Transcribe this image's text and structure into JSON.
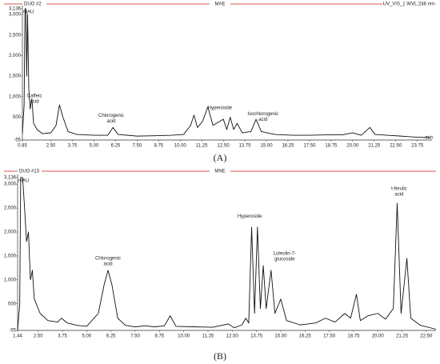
{
  "chart_data": [
    {
      "type": "line",
      "title": "MAE",
      "run": "DUO #2",
      "detector": "UV_VIS_1 WVL:246 nm",
      "label": "(A)",
      "y_unit": "mAU",
      "x_unit": "min",
      "xlim": [
        0.85,
        24.6
      ],
      "ylim": [
        -55,
        3136
      ],
      "xticks": [
        0.85,
        {
          "value": 2.5,
          "label": "2.50"
        },
        3.75,
        {
          "value": 5.0,
          "label": "5.00"
        },
        6.25,
        {
          "value": 7.5,
          "label": "7.50"
        },
        8.75,
        {
          "value": 10.0,
          "label": "10.00"
        },
        11.25,
        {
          "value": 12.5,
          "label": "12.50"
        },
        13.75,
        {
          "value": 15.0,
          "label": "15.00"
        },
        16.25,
        {
          "value": 17.5,
          "label": "17.50"
        },
        18.75,
        {
          "value": 20.0,
          "label": "20.00"
        },
        21.25,
        {
          "value": 22.5,
          "label": "22.50"
        },
        23.75
      ],
      "yticks": [
        {
          "value": 3136,
          "label": "3,136"
        },
        {
          "value": 3000,
          "label": "3,000"
        },
        {
          "value": 2500,
          "label": "2,500"
        },
        {
          "value": 2000,
          "label": "2,000"
        },
        {
          "value": 1500,
          "label": "1,500"
        },
        {
          "value": 1000,
          "label": "1,000"
        },
        500,
        -55
      ],
      "color": "#111111",
      "x": [
        0.85,
        0.95,
        1.0,
        1.05,
        1.1,
        1.15,
        1.22,
        1.3,
        1.4,
        1.5,
        1.7,
        2.0,
        2.5,
        2.8,
        3.0,
        3.2,
        3.5,
        4.0,
        5.0,
        5.8,
        6.1,
        6.4,
        7.5,
        8.75,
        9.5,
        10.2,
        10.6,
        10.8,
        11.0,
        11.3,
        11.6,
        11.9,
        12.3,
        12.5,
        12.7,
        12.9,
        13.1,
        13.3,
        13.6,
        14.1,
        14.4,
        14.7,
        15.5,
        16.5,
        17.5,
        18.5,
        19.4,
        20.0,
        20.5,
        21.0,
        21.3,
        22.0,
        22.8,
        23.5,
        24.5
      ],
      "values": [
        100,
        800,
        3136,
        3136,
        1500,
        3000,
        1200,
        700,
        950,
        350,
        200,
        100,
        120,
        300,
        800,
        500,
        150,
        80,
        60,
        60,
        250,
        80,
        40,
        50,
        60,
        80,
        300,
        550,
        250,
        400,
        750,
        300,
        400,
        450,
        200,
        500,
        200,
        350,
        120,
        150,
        450,
        150,
        80,
        60,
        60,
        70,
        70,
        120,
        60,
        250,
        80,
        60,
        40,
        20,
        0
      ],
      "annotations": [
        {
          "lines": [
            "Caffeic",
            "acid"
          ],
          "x": 1.55,
          "y": 1020
        },
        {
          "lines": [
            "Chlorogenic",
            "acid"
          ],
          "x": 6.0,
          "y": 540
        },
        {
          "lines": [
            "Hyperoside"
          ],
          "x": 12.3,
          "y": 720
        },
        {
          "lines": [
            "Isochlorogenic",
            "acid"
          ],
          "x": 14.8,
          "y": 580
        }
      ]
    },
    {
      "type": "line",
      "title": "MNE",
      "run": "DUO #13",
      "label": "(B)",
      "y_unit": "mAU",
      "xlim": [
        1.44,
        23.0
      ],
      "ylim": [
        -55,
        3136
      ],
      "xticks": [
        1.44,
        {
          "value": 2.5,
          "label": "2.50"
        },
        3.75,
        {
          "value": 5.0,
          "label": "5.00"
        },
        6.25,
        {
          "value": 7.5,
          "label": "7.50"
        },
        8.75,
        {
          "value": 10.0,
          "label": "10.00"
        },
        11.25,
        {
          "value": 12.5,
          "label": "12.50"
        },
        13.75,
        {
          "value": 15.0,
          "label": "15.00"
        },
        16.25,
        {
          "value": 17.5,
          "label": "17.50"
        },
        18.75,
        {
          "value": 20.0,
          "label": "20.00"
        },
        21.25,
        {
          "value": 22.5,
          "label": "22.50"
        }
      ],
      "yticks": [
        {
          "value": 3136,
          "label": "3,136"
        },
        {
          "value": 3000,
          "label": "3,000"
        },
        {
          "value": 2500,
          "label": "2,500"
        },
        {
          "value": 2000,
          "label": "2,000"
        },
        {
          "value": 1500,
          "label": "1,500"
        },
        {
          "value": 1000,
          "label": "1,000"
        },
        500,
        -55
      ],
      "color": "#111111",
      "x": [
        1.44,
        1.55,
        1.6,
        1.7,
        1.8,
        1.9,
        2.0,
        2.1,
        2.2,
        2.3,
        2.6,
        3.0,
        3.5,
        3.7,
        4.0,
        4.5,
        5.0,
        5.6,
        5.9,
        6.1,
        6.3,
        6.6,
        7.0,
        7.5,
        8.0,
        8.5,
        9.0,
        9.3,
        9.6,
        10.5,
        11.5,
        12.3,
        12.6,
        13.0,
        13.2,
        13.35,
        13.5,
        13.65,
        13.8,
        13.95,
        14.1,
        14.25,
        14.5,
        14.7,
        15.0,
        15.3,
        16.0,
        16.8,
        17.3,
        17.8,
        18.3,
        18.6,
        18.9,
        19.1,
        19.5,
        20.0,
        20.4,
        20.8,
        21.0,
        21.2,
        21.5,
        21.7,
        22.2,
        23.0
      ],
      "values": [
        -55,
        500,
        3136,
        3136,
        2500,
        1800,
        2000,
        1000,
        1200,
        600,
        300,
        150,
        120,
        200,
        100,
        50,
        30,
        300,
        900,
        1200,
        900,
        200,
        50,
        20,
        40,
        20,
        40,
        250,
        30,
        20,
        10,
        80,
        0,
        60,
        200,
        100,
        2100,
        300,
        2100,
        400,
        1300,
        400,
        1200,
        300,
        600,
        150,
        60,
        100,
        200,
        120,
        300,
        200,
        700,
        150,
        250,
        300,
        180,
        400,
        2600,
        300,
        1450,
        200,
        50,
        -30
      ],
      "annotations": [
        {
          "lines": [
            "Chlorogenic",
            "acid"
          ],
          "x": 6.1,
          "y": 1450
        },
        {
          "lines": [
            "Hyperoside"
          ],
          "x": 13.4,
          "y": 2330
        },
        {
          "lines": [
            "Luteolin-7-",
            "glucoside"
          ],
          "x": 15.2,
          "y": 1550
        },
        {
          "lines": [
            "t-ferulic",
            "acid"
          ],
          "x": 21.1,
          "y": 2900
        }
      ]
    }
  ]
}
